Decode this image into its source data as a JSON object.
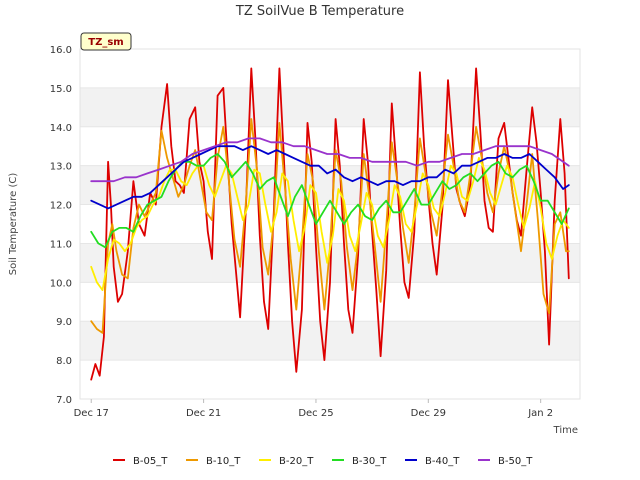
{
  "chart_data": {
    "type": "line",
    "title": "TZ SoilVue B Temperature",
    "tag": "TZ_sm",
    "xlabel": "Time",
    "ylabel": "Soil Temperature (C)",
    "xlim": [
      -0.4,
      17.4
    ],
    "ylim": [
      7.0,
      16.0
    ],
    "x_ticks": [
      {
        "x": 0,
        "label": "Dec 17"
      },
      {
        "x": 4,
        "label": "Dec 21"
      },
      {
        "x": 8,
        "label": "Dec 25"
      },
      {
        "x": 12,
        "label": "Dec 29"
      },
      {
        "x": 16,
        "label": "Jan 2"
      }
    ],
    "y_ticks": [
      7.0,
      8.0,
      9.0,
      10.0,
      11.0,
      12.0,
      13.0,
      14.0,
      15.0,
      16.0
    ],
    "y_tick_labels": [
      "7.0",
      "8.0",
      "9.0",
      "10.0",
      "11.0",
      "12.0",
      "13.0",
      "14.0",
      "15.0",
      "16.0"
    ],
    "x_unit_note_days_since": "Dec 17",
    "grid": "horizontal bands",
    "legend_position": "bottom",
    "series": [
      {
        "name": "B-05_T",
        "color": "#dd0000",
        "x": [
          0.0,
          0.15,
          0.3,
          0.45,
          0.6,
          0.7,
          0.8,
          0.95,
          1.1,
          1.3,
          1.5,
          1.7,
          1.9,
          2.1,
          2.3,
          2.5,
          2.7,
          2.85,
          3.0,
          3.15,
          3.3,
          3.5,
          3.7,
          3.85,
          4.0,
          4.15,
          4.3,
          4.5,
          4.7,
          4.85,
          5.0,
          5.15,
          5.3,
          5.5,
          5.7,
          5.85,
          6.0,
          6.15,
          6.3,
          6.5,
          6.7,
          6.85,
          7.0,
          7.15,
          7.3,
          7.5,
          7.7,
          7.85,
          8.0,
          8.15,
          8.3,
          8.5,
          8.7,
          8.85,
          9.0,
          9.15,
          9.3,
          9.5,
          9.7,
          9.85,
          10.0,
          10.15,
          10.3,
          10.5,
          10.7,
          10.85,
          11.0,
          11.15,
          11.3,
          11.5,
          11.7,
          11.85,
          12.0,
          12.15,
          12.3,
          12.5,
          12.7,
          12.85,
          13.0,
          13.15,
          13.3,
          13.5,
          13.7,
          13.85,
          14.0,
          14.15,
          14.3,
          14.5,
          14.7,
          14.85,
          15.0,
          15.15,
          15.3,
          15.5,
          15.7,
          15.85,
          16.0,
          16.15,
          16.3,
          16.5,
          16.7,
          16.85,
          17.0
        ],
        "values": [
          7.5,
          7.9,
          7.6,
          8.6,
          13.1,
          12.0,
          10.4,
          9.5,
          9.7,
          10.8,
          12.6,
          11.5,
          11.2,
          12.3,
          12.0,
          14.0,
          15.1,
          13.5,
          12.6,
          12.5,
          12.3,
          14.2,
          14.5,
          13.1,
          12.6,
          11.3,
          10.6,
          14.8,
          15.0,
          13.2,
          11.5,
          10.3,
          9.1,
          11.8,
          15.5,
          13.6,
          11.2,
          9.5,
          8.8,
          11.8,
          15.5,
          13.3,
          11.0,
          9.0,
          7.7,
          9.3,
          14.1,
          13.1,
          10.9,
          9.0,
          8.0,
          10.0,
          14.2,
          13.0,
          11.0,
          9.3,
          8.7,
          10.7,
          14.2,
          13.1,
          11.3,
          9.8,
          8.1,
          10.3,
          14.6,
          13.1,
          11.4,
          10.0,
          9.6,
          11.3,
          15.4,
          13.5,
          12.2,
          11.0,
          10.2,
          11.9,
          15.2,
          13.8,
          12.4,
          12.0,
          11.7,
          12.5,
          15.5,
          13.9,
          12.1,
          11.4,
          11.3,
          13.7,
          14.1,
          13.2,
          12.3,
          11.6,
          11.2,
          12.9,
          14.5,
          13.6,
          12.3,
          10.8,
          8.4,
          12.1,
          14.2,
          12.8,
          10.1
        ]
      },
      {
        "name": "B-10_T",
        "color": "#ee9900",
        "x": [
          0.0,
          0.2,
          0.4,
          0.6,
          0.75,
          0.9,
          1.1,
          1.3,
          1.5,
          1.7,
          1.9,
          2.1,
          2.3,
          2.5,
          2.7,
          2.9,
          3.1,
          3.3,
          3.5,
          3.7,
          3.9,
          4.1,
          4.3,
          4.5,
          4.7,
          4.9,
          5.1,
          5.3,
          5.5,
          5.7,
          5.9,
          6.1,
          6.3,
          6.5,
          6.7,
          6.9,
          7.1,
          7.3,
          7.5,
          7.7,
          7.9,
          8.1,
          8.3,
          8.5,
          8.7,
          8.9,
          9.1,
          9.3,
          9.5,
          9.7,
          9.9,
          10.1,
          10.3,
          10.5,
          10.7,
          10.9,
          11.1,
          11.3,
          11.5,
          11.7,
          11.9,
          12.1,
          12.3,
          12.5,
          12.7,
          12.9,
          13.1,
          13.3,
          13.5,
          13.7,
          13.9,
          14.1,
          14.3,
          14.5,
          14.7,
          14.9,
          15.1,
          15.3,
          15.5,
          15.7,
          15.9,
          16.1,
          16.3,
          16.5,
          16.7,
          16.9,
          17.0
        ],
        "values": [
          9.0,
          8.8,
          8.7,
          11.0,
          11.5,
          10.8,
          10.2,
          10.1,
          11.4,
          12.0,
          11.7,
          12.0,
          12.3,
          13.9,
          13.2,
          12.7,
          12.2,
          12.5,
          13.0,
          13.4,
          12.6,
          11.8,
          11.6,
          13.2,
          14.0,
          12.6,
          11.1,
          10.4,
          12.0,
          14.2,
          12.9,
          10.9,
          10.2,
          11.6,
          14.1,
          12.4,
          10.6,
          9.3,
          11.0,
          13.3,
          12.6,
          10.8,
          9.3,
          10.9,
          13.4,
          12.6,
          10.9,
          9.8,
          11.0,
          13.3,
          12.2,
          10.9,
          9.5,
          11.4,
          13.6,
          12.6,
          11.4,
          10.5,
          11.8,
          13.7,
          12.8,
          11.8,
          11.2,
          12.4,
          13.8,
          13.0,
          12.1,
          11.8,
          12.8,
          14.0,
          13.2,
          12.3,
          11.8,
          12.8,
          13.5,
          12.8,
          11.8,
          10.8,
          12.0,
          13.3,
          11.6,
          9.7,
          9.2,
          11.5,
          11.8,
          10.8,
          10.8
        ]
      },
      {
        "name": "B-20_T",
        "color": "#ffee00",
        "x": [
          0.0,
          0.2,
          0.4,
          0.6,
          0.8,
          1.0,
          1.2,
          1.4,
          1.6,
          1.8,
          2.0,
          2.2,
          2.4,
          2.6,
          2.8,
          3.0,
          3.2,
          3.4,
          3.6,
          3.8,
          4.0,
          4.2,
          4.4,
          4.6,
          4.8,
          5.0,
          5.2,
          5.4,
          5.6,
          5.8,
          6.0,
          6.2,
          6.4,
          6.6,
          6.8,
          7.0,
          7.2,
          7.4,
          7.6,
          7.8,
          8.0,
          8.2,
          8.4,
          8.6,
          8.8,
          9.0,
          9.2,
          9.4,
          9.6,
          9.8,
          10.0,
          10.2,
          10.4,
          10.6,
          10.8,
          11.0,
          11.2,
          11.4,
          11.6,
          11.8,
          12.0,
          12.2,
          12.4,
          12.6,
          12.8,
          13.0,
          13.2,
          13.4,
          13.6,
          13.8,
          14.0,
          14.2,
          14.4,
          14.6,
          14.8,
          15.0,
          15.2,
          15.4,
          15.6,
          15.8,
          16.0,
          16.2,
          16.4,
          16.6,
          16.8,
          17.0
        ],
        "values": [
          10.4,
          10.0,
          9.8,
          10.6,
          11.1,
          11.0,
          10.8,
          11.0,
          11.4,
          11.6,
          11.7,
          12.0,
          12.2,
          12.6,
          12.9,
          12.9,
          12.6,
          12.5,
          12.8,
          13.0,
          13.0,
          12.5,
          12.2,
          12.6,
          13.0,
          12.8,
          12.2,
          11.6,
          12.0,
          12.9,
          12.8,
          12.0,
          11.3,
          11.8,
          12.8,
          12.6,
          11.6,
          10.8,
          11.4,
          12.5,
          12.3,
          11.3,
          10.5,
          11.2,
          12.4,
          12.1,
          11.2,
          10.8,
          11.5,
          12.3,
          12.0,
          11.2,
          10.9,
          11.6,
          12.5,
          12.2,
          11.5,
          11.3,
          12.0,
          12.8,
          12.5,
          11.9,
          11.7,
          12.3,
          13.0,
          12.8,
          12.2,
          12.1,
          12.6,
          13.2,
          12.9,
          12.3,
          12.0,
          12.5,
          13.0,
          12.7,
          12.0,
          11.4,
          11.9,
          12.6,
          11.9,
          11.0,
          10.6,
          11.2,
          11.6,
          11.4
        ]
      },
      {
        "name": "B-30_T",
        "color": "#22dd22",
        "x": [
          0.0,
          0.25,
          0.5,
          0.75,
          1.0,
          1.25,
          1.5,
          1.75,
          2.0,
          2.25,
          2.5,
          2.75,
          3.0,
          3.25,
          3.5,
          3.75,
          4.0,
          4.25,
          4.5,
          4.75,
          5.0,
          5.25,
          5.5,
          5.75,
          6.0,
          6.25,
          6.5,
          6.75,
          7.0,
          7.25,
          7.5,
          7.75,
          8.0,
          8.25,
          8.5,
          8.75,
          9.0,
          9.25,
          9.5,
          9.75,
          10.0,
          10.25,
          10.5,
          10.75,
          11.0,
          11.25,
          11.5,
          11.75,
          12.0,
          12.25,
          12.5,
          12.75,
          13.0,
          13.25,
          13.5,
          13.75,
          14.0,
          14.25,
          14.5,
          14.75,
          15.0,
          15.25,
          15.5,
          15.75,
          16.0,
          16.25,
          16.5,
          16.75,
          17.0
        ],
        "values": [
          11.3,
          11.0,
          10.9,
          11.3,
          11.4,
          11.4,
          11.3,
          11.7,
          12.0,
          12.1,
          12.2,
          12.6,
          12.9,
          13.1,
          13.1,
          13.0,
          13.0,
          13.2,
          13.3,
          13.1,
          12.7,
          12.9,
          13.1,
          12.8,
          12.4,
          12.6,
          12.7,
          12.2,
          11.7,
          12.2,
          12.5,
          12.0,
          11.5,
          11.8,
          12.1,
          11.8,
          11.5,
          11.8,
          12.0,
          11.7,
          11.6,
          11.9,
          12.1,
          11.8,
          11.8,
          12.1,
          12.4,
          12.0,
          12.0,
          12.3,
          12.6,
          12.4,
          12.5,
          12.7,
          12.8,
          12.6,
          12.8,
          13.0,
          13.1,
          12.8,
          12.7,
          12.9,
          13.0,
          12.6,
          12.1,
          12.1,
          11.8,
          11.5,
          11.9
        ]
      },
      {
        "name": "B-40_T",
        "color": "#0000cc",
        "x": [
          0.0,
          0.3,
          0.6,
          0.9,
          1.2,
          1.5,
          1.8,
          2.1,
          2.4,
          2.7,
          3.0,
          3.3,
          3.6,
          3.9,
          4.2,
          4.5,
          4.8,
          5.1,
          5.4,
          5.7,
          6.0,
          6.3,
          6.6,
          6.9,
          7.2,
          7.5,
          7.8,
          8.1,
          8.4,
          8.7,
          9.0,
          9.3,
          9.6,
          9.9,
          10.2,
          10.5,
          10.8,
          11.1,
          11.4,
          11.7,
          12.0,
          12.3,
          12.6,
          12.9,
          13.2,
          13.5,
          13.8,
          14.1,
          14.4,
          14.7,
          15.0,
          15.3,
          15.6,
          15.9,
          16.2,
          16.5,
          16.8,
          17.0
        ],
        "values": [
          12.1,
          12.0,
          11.9,
          12.0,
          12.1,
          12.2,
          12.2,
          12.3,
          12.5,
          12.7,
          12.9,
          13.1,
          13.2,
          13.3,
          13.4,
          13.5,
          13.5,
          13.5,
          13.4,
          13.5,
          13.4,
          13.3,
          13.4,
          13.3,
          13.2,
          13.1,
          13.0,
          13.0,
          12.8,
          12.9,
          12.7,
          12.6,
          12.7,
          12.6,
          12.5,
          12.6,
          12.6,
          12.5,
          12.6,
          12.6,
          12.7,
          12.7,
          12.9,
          12.8,
          13.0,
          13.0,
          13.1,
          13.2,
          13.2,
          13.3,
          13.2,
          13.2,
          13.3,
          13.1,
          12.9,
          12.7,
          12.4,
          12.5
        ]
      },
      {
        "name": "B-50_T",
        "color": "#9933cc",
        "x": [
          0.0,
          0.4,
          0.8,
          1.2,
          1.6,
          2.0,
          2.4,
          2.8,
          3.2,
          3.6,
          4.0,
          4.4,
          4.8,
          5.2,
          5.6,
          6.0,
          6.4,
          6.8,
          7.2,
          7.6,
          8.0,
          8.4,
          8.8,
          9.2,
          9.6,
          10.0,
          10.4,
          10.8,
          11.2,
          11.6,
          12.0,
          12.4,
          12.8,
          13.2,
          13.6,
          14.0,
          14.4,
          14.8,
          15.2,
          15.6,
          16.0,
          16.4,
          16.8,
          17.0
        ],
        "values": [
          12.6,
          12.6,
          12.6,
          12.7,
          12.7,
          12.8,
          12.9,
          13.0,
          13.1,
          13.3,
          13.4,
          13.5,
          13.6,
          13.6,
          13.7,
          13.7,
          13.6,
          13.6,
          13.5,
          13.5,
          13.4,
          13.3,
          13.3,
          13.2,
          13.2,
          13.1,
          13.1,
          13.1,
          13.1,
          13.0,
          13.1,
          13.1,
          13.2,
          13.3,
          13.3,
          13.4,
          13.5,
          13.5,
          13.5,
          13.5,
          13.4,
          13.3,
          13.1,
          13.0
        ]
      }
    ]
  }
}
